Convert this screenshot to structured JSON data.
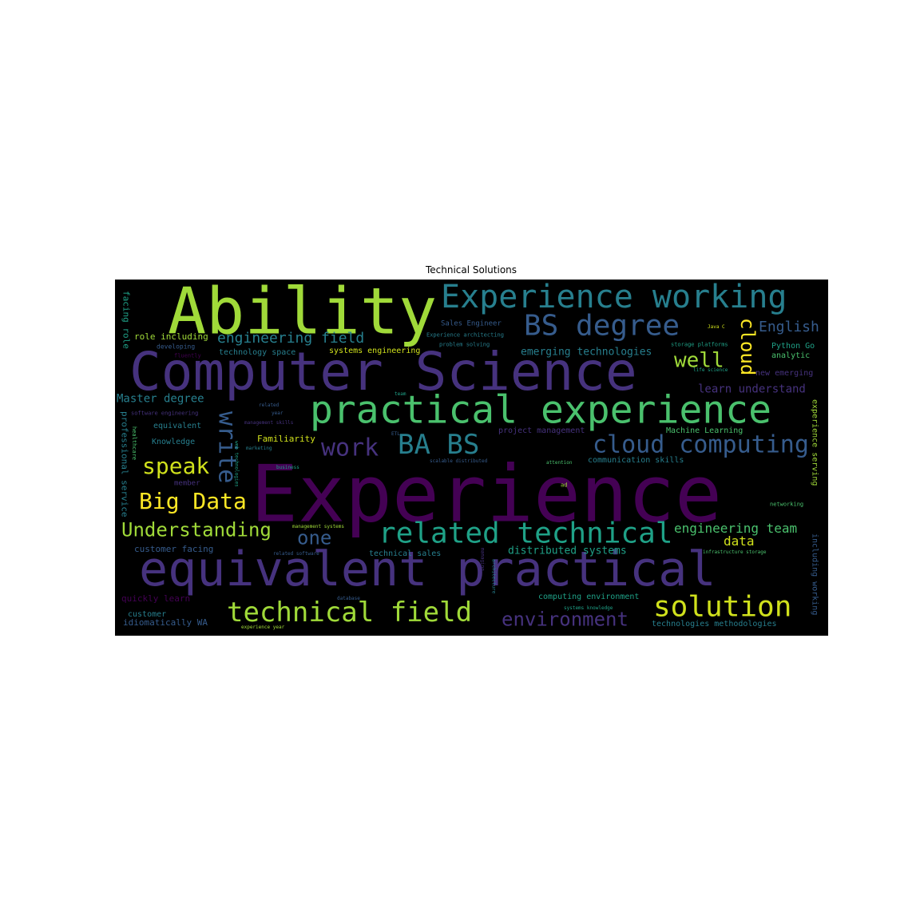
{
  "title": "Technical Solutions",
  "palette": [
    "#440154",
    "#46327e",
    "#365c8d",
    "#277f8e",
    "#1fa187",
    "#4ac16d",
    "#a0da39",
    "#fde725"
  ],
  "words": [
    {
      "text": "Experience",
      "color": "#440154"
    },
    {
      "text": "Computer Science",
      "color": "#46327e"
    },
    {
      "text": "Ability",
      "color": "#a0da39"
    },
    {
      "text": "equivalent practical",
      "color": "#46327e"
    },
    {
      "text": "practical experience",
      "color": "#4ac16d"
    },
    {
      "text": "Experience working",
      "color": "#277f8e"
    },
    {
      "text": "related technical",
      "color": "#1fa187"
    },
    {
      "text": "technical field",
      "color": "#a0da39"
    },
    {
      "text": "BS degree",
      "color": "#365c8d"
    },
    {
      "text": "solution",
      "color": "#d0e11c"
    },
    {
      "text": "cloud computing",
      "color": "#365c8d"
    },
    {
      "text": "BA BS",
      "color": "#277f8e"
    },
    {
      "text": "work",
      "color": "#46327e"
    },
    {
      "text": "Big Data",
      "color": "#fde725"
    },
    {
      "text": "speak",
      "color": "#d0e11c"
    },
    {
      "text": "write",
      "color": "#365c8d"
    },
    {
      "text": "Understanding",
      "color": "#a0da39"
    },
    {
      "text": "environment",
      "color": "#46327e"
    },
    {
      "text": "well",
      "color": "#a0da39"
    },
    {
      "text": "cloud",
      "color": "#fde725"
    },
    {
      "text": "one",
      "color": "#365c8d"
    },
    {
      "text": "engineering field",
      "color": "#277f8e"
    },
    {
      "text": "English",
      "color": "#365c8d"
    },
    {
      "text": "engineering team",
      "color": "#4ac16d"
    },
    {
      "text": "learn understand",
      "color": "#46327e"
    },
    {
      "text": "data",
      "color": "#d0e11c"
    },
    {
      "text": "emerging technologies",
      "color": "#277f8e"
    },
    {
      "text": "Master degree",
      "color": "#277f8e"
    },
    {
      "text": "distributed systems",
      "color": "#1fa187"
    },
    {
      "text": "role including",
      "color": "#a0da39"
    },
    {
      "text": "facing role",
      "color": "#1fa187"
    },
    {
      "text": "technology space",
      "color": "#277f8e"
    },
    {
      "text": "systems engineering",
      "color": "#d0e11c"
    },
    {
      "text": "Sales Engineer",
      "color": "#365c8d"
    },
    {
      "text": "Experience architecting",
      "color": "#277f8e"
    },
    {
      "text": "problem solving",
      "color": "#277f8e"
    },
    {
      "text": "Python Go",
      "color": "#1fa187"
    },
    {
      "text": "analytic",
      "color": "#4ac16d"
    },
    {
      "text": "new emerging",
      "color": "#46327e"
    },
    {
      "text": "storage platforms",
      "color": "#1fa187"
    },
    {
      "text": "life science",
      "color": "#1fa187"
    },
    {
      "text": "Java C",
      "color": "#d0e11c"
    },
    {
      "text": "developing",
      "color": "#365c8d"
    },
    {
      "text": "fluently",
      "color": "#440154"
    },
    {
      "text": "software engineering",
      "color": "#46327e"
    },
    {
      "text": "equivalent",
      "color": "#277f8e"
    },
    {
      "text": "Knowledge",
      "color": "#277f8e"
    },
    {
      "text": "Familiarity",
      "color": "#d0e11c"
    },
    {
      "text": "professional service",
      "color": "#277f8e"
    },
    {
      "text": "healthcare",
      "color": "#4ac16d"
    },
    {
      "text": "member",
      "color": "#46327e"
    },
    {
      "text": "customer facing",
      "color": "#365c8d"
    },
    {
      "text": "quickly learn",
      "color": "#440154"
    },
    {
      "text": "customer",
      "color": "#277f8e"
    },
    {
      "text": "idiomatically WA",
      "color": "#365c8d"
    },
    {
      "text": "experience year",
      "color": "#a0da39"
    },
    {
      "text": "related",
      "color": "#365c8d"
    },
    {
      "text": "year",
      "color": "#365c8d"
    },
    {
      "text": "management skills",
      "color": "#46327e"
    },
    {
      "text": "web technologies",
      "color": "#1fa187"
    },
    {
      "text": "marketing",
      "color": "#277f8e"
    },
    {
      "text": "business",
      "color": "#1fa187"
    },
    {
      "text": "team",
      "color": "#1fa187"
    },
    {
      "text": "project management",
      "color": "#46327e"
    },
    {
      "text": "Machine Learning",
      "color": "#4ac16d"
    },
    {
      "text": "communication skills",
      "color": "#277f8e"
    },
    {
      "text": "scalable distributed",
      "color": "#365c8d"
    },
    {
      "text": "attention",
      "color": "#4ac16d"
    },
    {
      "text": "management systems",
      "color": "#a0da39"
    },
    {
      "text": "related software",
      "color": "#365c8d"
    },
    {
      "text": "technical sales",
      "color": "#277f8e"
    },
    {
      "text": "managing",
      "color": "#46327e"
    },
    {
      "text": "architecture",
      "color": "#277f8e"
    },
    {
      "text": "database",
      "color": "#365c8d"
    },
    {
      "text": "computing environment",
      "color": "#1fa187"
    },
    {
      "text": "systems knowledge",
      "color": "#1fa187"
    },
    {
      "text": "technologies methodologies",
      "color": "#277f8e"
    },
    {
      "text": "infrastructure storage",
      "color": "#4ac16d"
    },
    {
      "text": "networking",
      "color": "#4ac16d"
    },
    {
      "text": "experience serving",
      "color": "#a0da39"
    },
    {
      "text": "including working",
      "color": "#365c8d"
    },
    {
      "text": "ad",
      "color": "#a0da39"
    },
    {
      "text": "ETL",
      "color": "#365c8d"
    }
  ]
}
